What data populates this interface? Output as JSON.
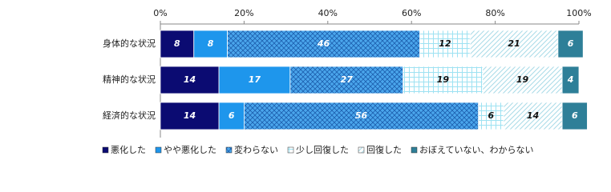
{
  "chart_data": {
    "type": "stacked-bar-horizontal",
    "categories": [
      "身体的な状況",
      "精神的な状況",
      "経済的な状況"
    ],
    "series": [
      {
        "name": "悪化した",
        "color": "#0b0b72",
        "pattern": "solid",
        "values": [
          8,
          14,
          14
        ]
      },
      {
        "name": "やや悪化した",
        "color": "#1e96ec",
        "pattern": "solid",
        "values": [
          8,
          17,
          6
        ]
      },
      {
        "name": "変わらない",
        "color": "#4aa6ec",
        "pattern": "crosshatch",
        "values": [
          46,
          27,
          56
        ]
      },
      {
        "name": "少し回復した",
        "color": "#9ee2f2",
        "pattern": "grid",
        "values": [
          12,
          19,
          6
        ]
      },
      {
        "name": "回復した",
        "color": "#a9dbe8",
        "pattern": "diagonal",
        "values": [
          21,
          19,
          14
        ]
      },
      {
        "name": "おぼえていない、わからない",
        "color": "#2e7f98",
        "pattern": "solid",
        "values": [
          6,
          4,
          6
        ]
      }
    ],
    "xlim": [
      0,
      100
    ],
    "xticks": [
      {
        "value": 0,
        "label": "0%"
      },
      {
        "value": 20,
        "label": "20%"
      },
      {
        "value": 40,
        "label": "40%"
      },
      {
        "value": 60,
        "label": "60%"
      },
      {
        "value": 80,
        "label": "80%"
      },
      {
        "value": 100,
        "label": "100%"
      }
    ]
  }
}
